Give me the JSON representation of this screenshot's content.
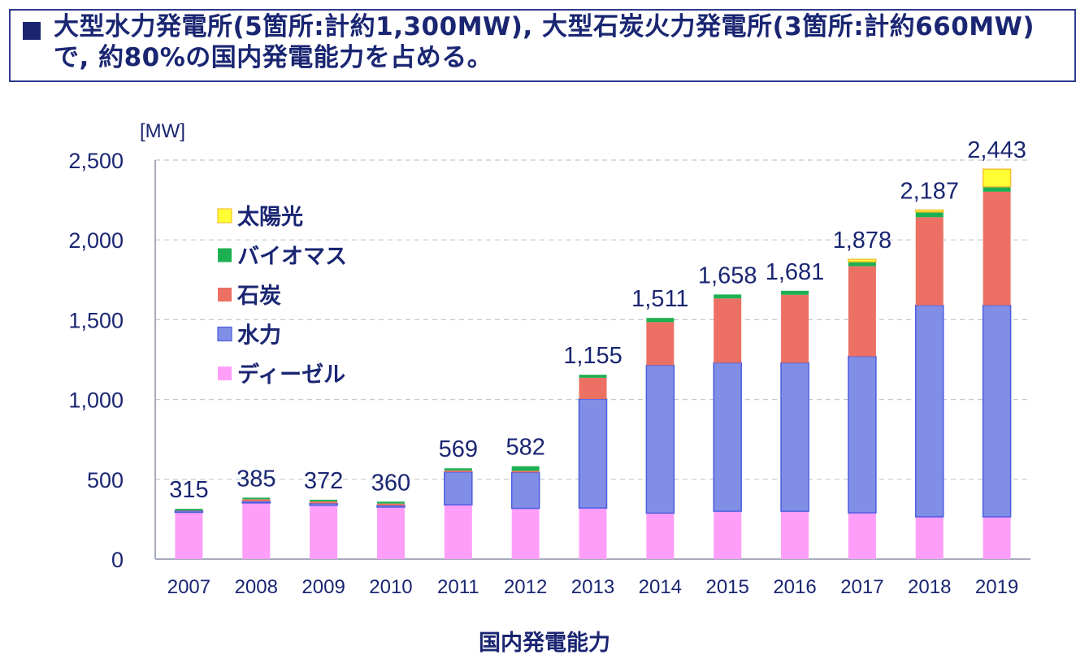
{
  "headline": {
    "bullet_icon": "square-bullet-icon",
    "text": "大型水力発電所(5箇所:計約1,300MW), 大型石炭火力発電所(3箇所:計約660MW)で, 約80%の国内発電能力を占める。"
  },
  "chart_data": {
    "type": "bar",
    "stacked": true,
    "title": "",
    "xlabel": "国内発電能力",
    "ylabel": "[MW]",
    "ylim": [
      0,
      2500
    ],
    "yticks": [
      0,
      500,
      1000,
      1500,
      2000,
      2500
    ],
    "ytick_labels": [
      "0",
      "500",
      "1,000",
      "1,500",
      "2,000",
      "2,500"
    ],
    "grid": true,
    "legend_position": "top-left",
    "categories": [
      "2007",
      "2008",
      "2009",
      "2010",
      "2011",
      "2012",
      "2013",
      "2014",
      "2015",
      "2016",
      "2017",
      "2018",
      "2019"
    ],
    "series": [
      {
        "name": "ディーゼル",
        "color": "#ff9ef8",
        "values": [
          293,
          352,
          337,
          326,
          340,
          318,
          320,
          288,
          300,
          300,
          290,
          265,
          265
        ]
      },
      {
        "name": "水力",
        "color": "#808ee6",
        "values": [
          10,
          10,
          12,
          10,
          206,
          225,
          683,
          927,
          930,
          930,
          980,
          1325,
          1325
        ]
      },
      {
        "name": "石炭",
        "color": "#ec7063",
        "values": [
          2,
          13,
          12,
          12,
          10,
          10,
          133,
          270,
          403,
          426,
          565,
          552,
          712
        ]
      },
      {
        "name": "バイオマス",
        "color": "#1db052",
        "values": [
          10,
          10,
          11,
          12,
          13,
          29,
          19,
          26,
          25,
          25,
          28,
          33,
          31
        ]
      },
      {
        "name": "太陽光",
        "color": "#ffff33",
        "values": [
          0,
          0,
          0,
          0,
          0,
          0,
          0,
          0,
          0,
          0,
          15,
          12,
          110
        ]
      }
    ],
    "totals": [
      315,
      385,
      372,
      360,
      569,
      582,
      1155,
      1511,
      1658,
      1681,
      1878,
      2187,
      2443
    ],
    "total_labels": [
      "315",
      "385",
      "372",
      "360",
      "569",
      "582",
      "1,155",
      "1,511",
      "1,658",
      "1,681",
      "1,878",
      "2,187",
      "2,443"
    ],
    "legend_order": [
      "太陽光",
      "バイオマス",
      "石炭",
      "水力",
      "ディーゼル"
    ]
  }
}
